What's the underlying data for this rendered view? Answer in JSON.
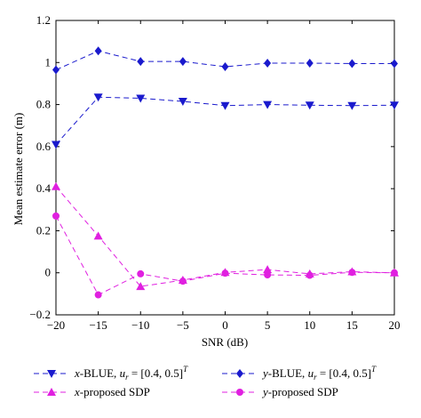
{
  "chart_data": {
    "type": "line",
    "xlabel": "SNR (dB)",
    "ylabel": "Mean estimate error (m)",
    "xlim": [
      -20,
      20
    ],
    "ylim": [
      -0.2,
      1.2
    ],
    "xticks": [
      "−20",
      "−15",
      "−10",
      "−5",
      "0",
      "5",
      "10",
      "15",
      "20"
    ],
    "yticks": [
      "−0.2",
      "0",
      "0.2",
      "0.4",
      "0.6",
      "0.8",
      "1",
      "1.2"
    ],
    "grid": false,
    "legend_position": "bottom",
    "x": [
      -20,
      -15,
      -10,
      -5,
      0,
      5,
      10,
      15,
      20
    ],
    "series": [
      {
        "name": "x-BLUE, u_r = [0.4, 0.5]^T",
        "color": "#1a1acd",
        "marker": "triangle-down",
        "values": [
          0.61,
          0.835,
          0.83,
          0.815,
          0.795,
          0.8,
          0.797,
          0.795,
          0.797
        ]
      },
      {
        "name": "y-BLUE, u_r = [0.4, 0.5]^T",
        "color": "#1a1acd",
        "marker": "diamond",
        "values": [
          0.965,
          1.055,
          1.005,
          1.005,
          0.98,
          0.997,
          0.997,
          0.995,
          0.995
        ]
      },
      {
        "name": "x-proposed SDP",
        "color": "#e020e0",
        "marker": "triangle-up",
        "values": [
          0.41,
          0.175,
          -0.065,
          -0.035,
          0.002,
          0.015,
          -0.005,
          0.005,
          0.0
        ]
      },
      {
        "name": "y-proposed SDP",
        "color": "#e020e0",
        "marker": "circle",
        "values": [
          0.27,
          -0.105,
          -0.005,
          -0.04,
          -0.002,
          -0.01,
          -0.012,
          0.002,
          0.0
        ]
      }
    ],
    "legend": {
      "items": [
        {
          "prefix": "x",
          "text": "-BLUE, ",
          "u": "u",
          "sub": "r",
          "rest": " = [0.4, 0.5]",
          "sup": "T"
        },
        {
          "prefix": "y",
          "text": "-BLUE, ",
          "u": "u",
          "sub": "r",
          "rest": " = [0.4, 0.5]",
          "sup": "T"
        },
        {
          "prefix": "x",
          "text": "-proposed SDP"
        },
        {
          "prefix": "y",
          "text": "-proposed SDP"
        }
      ]
    }
  }
}
